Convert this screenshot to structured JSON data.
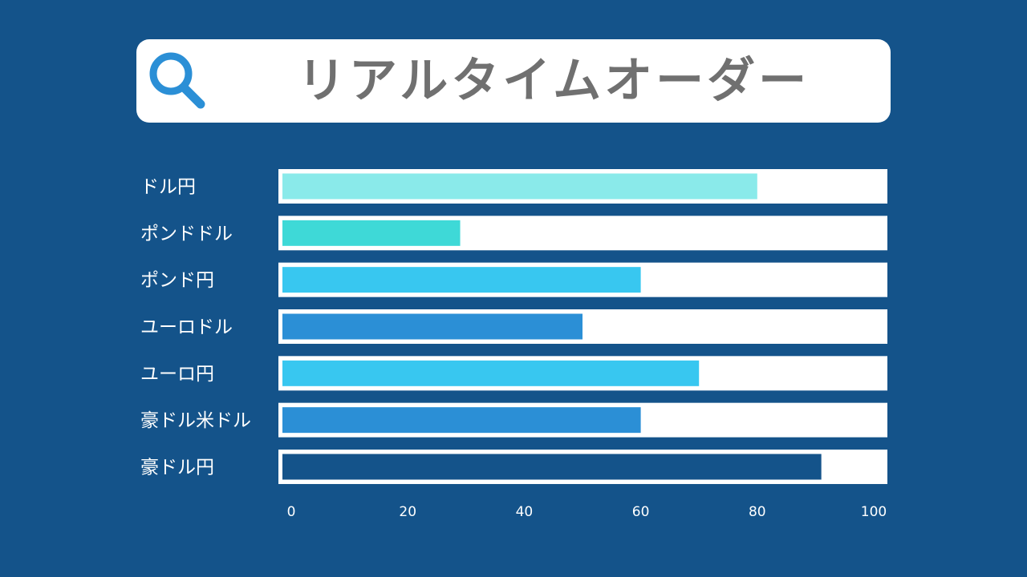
{
  "search": {
    "title": "リアルタイムオーダー"
  },
  "colors": {
    "background": "#14538a",
    "track": "#ffffff"
  },
  "chart_data": {
    "type": "bar",
    "orientation": "horizontal",
    "categories": [
      "ドル円",
      "ポンドドル",
      "ポンド円",
      "ユーロドル",
      "ユーロ円",
      "豪ドル米ドル",
      "豪ドル円"
    ],
    "values": [
      80,
      29,
      60,
      50,
      70,
      60,
      91
    ],
    "bar_colors": [
      "#8aeaea",
      "#3ed9d7",
      "#38c7f0",
      "#2b8fd6",
      "#38c7f0",
      "#2b8fd6",
      "#14538a"
    ],
    "xlim": [
      0,
      100
    ],
    "xticks": [
      "0",
      "20",
      "40",
      "60",
      "80",
      "100"
    ],
    "grid": false,
    "title": "",
    "xlabel": "",
    "ylabel": ""
  }
}
